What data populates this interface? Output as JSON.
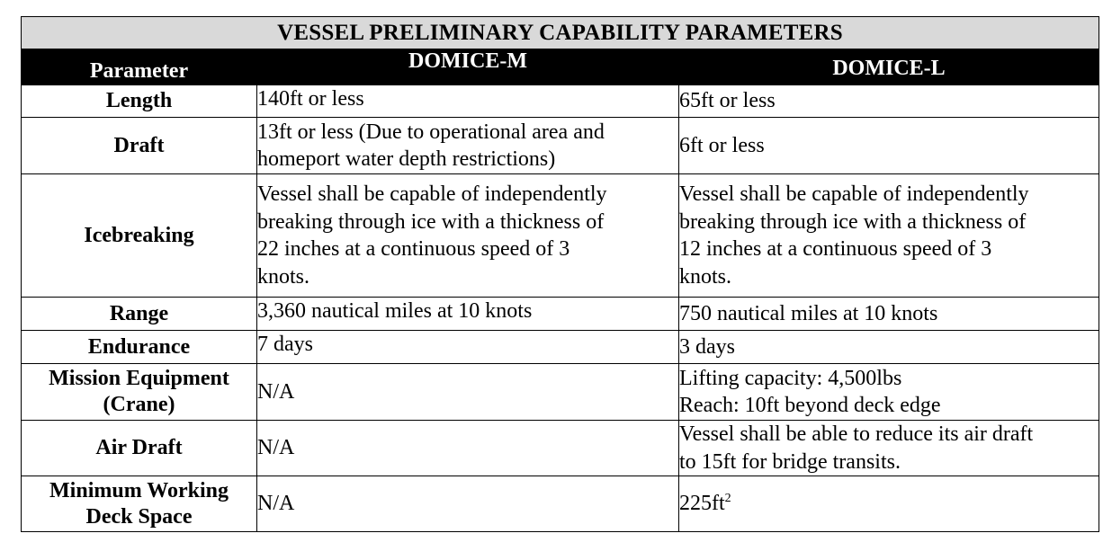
{
  "title": "VESSEL PRELIMINARY CAPABILITY PARAMETERS",
  "headers": {
    "parameter": "Parameter",
    "domice_m": "DOMICE-M",
    "domice_l": "DOMICE-L"
  },
  "rows": [
    {
      "param": [
        "Length"
      ],
      "m": [
        "140ft or less"
      ],
      "l": [
        "65ft or less"
      ]
    },
    {
      "param": [
        "Draft"
      ],
      "m": [
        "13ft or less (Due to operational area and",
        "homeport water depth restrictions)"
      ],
      "l": [
        "6ft or less"
      ]
    },
    {
      "param": [
        "Icebreaking"
      ],
      "m": [
        "Vessel shall be capable of independently",
        "breaking through ice with a thickness of",
        "22 inches at a continuous speed of 3",
        "knots."
      ],
      "l": [
        "Vessel shall be capable of independently",
        "breaking through ice with a thickness of",
        "12 inches at a continuous speed of 3",
        "knots."
      ]
    },
    {
      "param": [
        "Range"
      ],
      "m": [
        "3,360 nautical miles at 10 knots"
      ],
      "l": [
        "750 nautical miles at 10 knots"
      ]
    },
    {
      "param": [
        "Endurance"
      ],
      "m": [
        "7 days"
      ],
      "l": [
        "3 days"
      ]
    },
    {
      "param": [
        "Mission Equipment",
        "(Crane)"
      ],
      "m": [
        "N/A"
      ],
      "l": [
        "Lifting capacity: 4,500lbs",
        "Reach: 10ft beyond deck edge"
      ]
    },
    {
      "param": [
        "Air Draft"
      ],
      "m": [
        "N/A"
      ],
      "l": [
        "Vessel shall be able to reduce its air draft",
        "to 15ft for bridge transits."
      ]
    },
    {
      "param": [
        "Minimum Working",
        "Deck Space"
      ],
      "m": [
        "N/A"
      ],
      "l_value": "225ft",
      "l_sup": "2"
    }
  ]
}
